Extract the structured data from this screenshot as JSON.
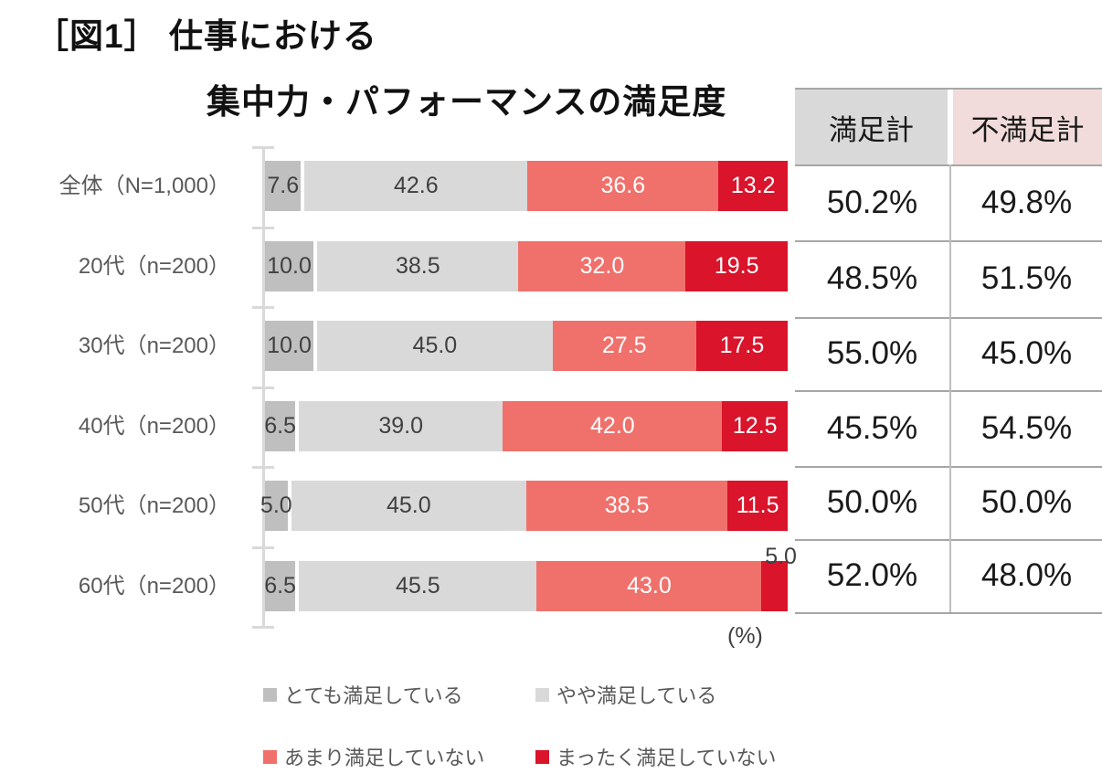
{
  "title": {
    "line1": "［図1］ 仕事における",
    "line2": "集中力・パフォーマンスの満足度"
  },
  "chart_data": {
    "type": "bar",
    "orientation": "horizontal",
    "stacked": true,
    "title": "［図1］仕事における 集中力・パフォーマンスの満足度",
    "unit": "(%)",
    "xlim": [
      0,
      100
    ],
    "grid": false,
    "legend_position": "bottom",
    "categories": [
      "全体（N=1,000）",
      "20代（n=200）",
      "30代（n=200）",
      "40代（n=200）",
      "50代（n=200）",
      "60代（n=200）"
    ],
    "series": [
      {
        "name": "とても満足している",
        "color": "#bfbfbf",
        "label_color": "#404040",
        "values": [
          7.6,
          10.0,
          10.0,
          6.5,
          5.0,
          6.5
        ]
      },
      {
        "name": "やや満足している",
        "color": "#d9d9d9",
        "label_color": "#404040",
        "values": [
          42.6,
          38.5,
          45.0,
          39.0,
          45.0,
          45.5
        ]
      },
      {
        "name": "あまり満足していない",
        "color": "#f0716c",
        "label_color": "#ffffff",
        "values": [
          36.6,
          32.0,
          27.5,
          42.0,
          38.5,
          43.0
        ]
      },
      {
        "name": "まったく満足していない",
        "color": "#d9142b",
        "label_color": "#ffffff",
        "values": [
          13.2,
          19.5,
          17.5,
          12.5,
          11.5,
          5.0
        ]
      }
    ]
  },
  "summary_table": {
    "headers": [
      {
        "label": "満足計",
        "bg": "#d9d9d9"
      },
      {
        "label": "不満足計",
        "bg": "#f2dcdb"
      }
    ],
    "rows": [
      {
        "satisfied": "50.2%",
        "dissatisfied": "49.8%"
      },
      {
        "satisfied": "48.5%",
        "dissatisfied": "51.5%"
      },
      {
        "satisfied": "55.0%",
        "dissatisfied": "45.0%"
      },
      {
        "satisfied": "45.5%",
        "dissatisfied": "54.5%"
      },
      {
        "satisfied": "50.0%",
        "dissatisfied": "50.0%"
      },
      {
        "satisfied": "52.0%",
        "dissatisfied": "48.0%"
      }
    ]
  }
}
